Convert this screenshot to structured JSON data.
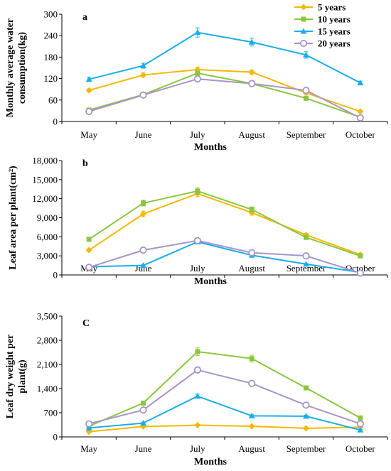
{
  "series_colors": {
    "5 years": "#f5b800",
    "10 years": "#8ac640",
    "15 years": "#1aaeea",
    "20 years": "#a894c8"
  },
  "legend": [
    "5 years",
    "10 years",
    "15 years",
    "20 years"
  ],
  "chart_data": [
    {
      "type": "line",
      "panel": "a",
      "xlabel": "Months",
      "ylabel": [
        "Monthly average water",
        "consumption(kg)"
      ],
      "categories": [
        "May",
        "June",
        "July",
        "August",
        "September",
        "October"
      ],
      "ylim": [
        0,
        300
      ],
      "yticks": [
        0,
        60,
        120,
        180,
        240,
        300
      ],
      "ytick_labels": [
        "0",
        "60",
        "120",
        "180",
        "240",
        "300"
      ],
      "series": [
        {
          "name": "5 years",
          "values": [
            87,
            130,
            145,
            138,
            80,
            28
          ],
          "err": [
            4,
            6,
            7,
            6,
            4,
            2
          ]
        },
        {
          "name": "10 years",
          "values": [
            32,
            75,
            135,
            106,
            65,
            12
          ],
          "err": [
            2,
            4,
            6,
            5,
            3,
            1
          ]
        },
        {
          "name": "15 years",
          "values": [
            118,
            156,
            249,
            222,
            186,
            108
          ],
          "err": [
            6,
            7,
            13,
            11,
            9,
            5
          ]
        },
        {
          "name": "20 years",
          "values": [
            28,
            74,
            119,
            106,
            87,
            10
          ],
          "err": [
            2,
            3,
            5,
            4,
            4,
            1
          ]
        }
      ]
    },
    {
      "type": "line",
      "panel": "b",
      "xlabel": "Months",
      "ylabel": [
        "Leaf area per plant(cm²)"
      ],
      "categories": [
        "May",
        "June",
        "July",
        "August",
        "September",
        "October"
      ],
      "ylim": [
        0,
        18000
      ],
      "yticks": [
        0,
        3000,
        6000,
        9000,
        12000,
        15000,
        18000
      ],
      "ytick_labels": [
        "0",
        "3,000",
        "6,000",
        "9,000",
        "12,000",
        "15,000",
        "18,000"
      ],
      "series": [
        {
          "name": "5 years",
          "values": [
            3900,
            9600,
            12800,
            9800,
            6300,
            3200
          ],
          "err": [
            150,
            450,
            500,
            400,
            250,
            150
          ]
        },
        {
          "name": "10 years",
          "values": [
            5600,
            11300,
            13200,
            10300,
            5900,
            3000
          ],
          "err": [
            200,
            450,
            500,
            400,
            250,
            150
          ]
        },
        {
          "name": "15 years",
          "values": [
            1300,
            1500,
            5200,
            3100,
            1700,
            400
          ],
          "err": [
            80,
            100,
            250,
            150,
            100,
            30
          ]
        },
        {
          "name": "20 years",
          "values": [
            1200,
            3900,
            5400,
            3500,
            3000,
            300
          ],
          "err": [
            80,
            150,
            250,
            150,
            120,
            30
          ]
        }
      ]
    },
    {
      "type": "line",
      "panel": "C",
      "xlabel": "Months",
      "ylabel": [
        "Leaf dry weight per",
        "plant(g)"
      ],
      "categories": [
        "May",
        "June",
        "July",
        "August",
        "September",
        "October"
      ],
      "ylim": [
        0,
        3500
      ],
      "yticks": [
        0,
        700,
        1400,
        2100,
        2800,
        3500
      ],
      "ytick_labels": [
        "0",
        "700",
        "1,400",
        "2,100",
        "2,800",
        "3,500"
      ],
      "series": [
        {
          "name": "5 years",
          "values": [
            150,
            300,
            340,
            310,
            250,
            280
          ],
          "err": [
            10,
            15,
            15,
            15,
            12,
            12
          ]
        },
        {
          "name": "10 years",
          "values": [
            310,
            980,
            2470,
            2270,
            1420,
            550
          ],
          "err": [
            20,
            40,
            110,
            100,
            60,
            30
          ]
        },
        {
          "name": "15 years",
          "values": [
            260,
            400,
            1180,
            610,
            600,
            200
          ],
          "err": [
            15,
            20,
            60,
            30,
            30,
            15
          ]
        },
        {
          "name": "20 years",
          "values": [
            380,
            780,
            1940,
            1550,
            920,
            380
          ],
          "err": [
            20,
            40,
            80,
            60,
            40,
            20
          ]
        }
      ]
    }
  ]
}
